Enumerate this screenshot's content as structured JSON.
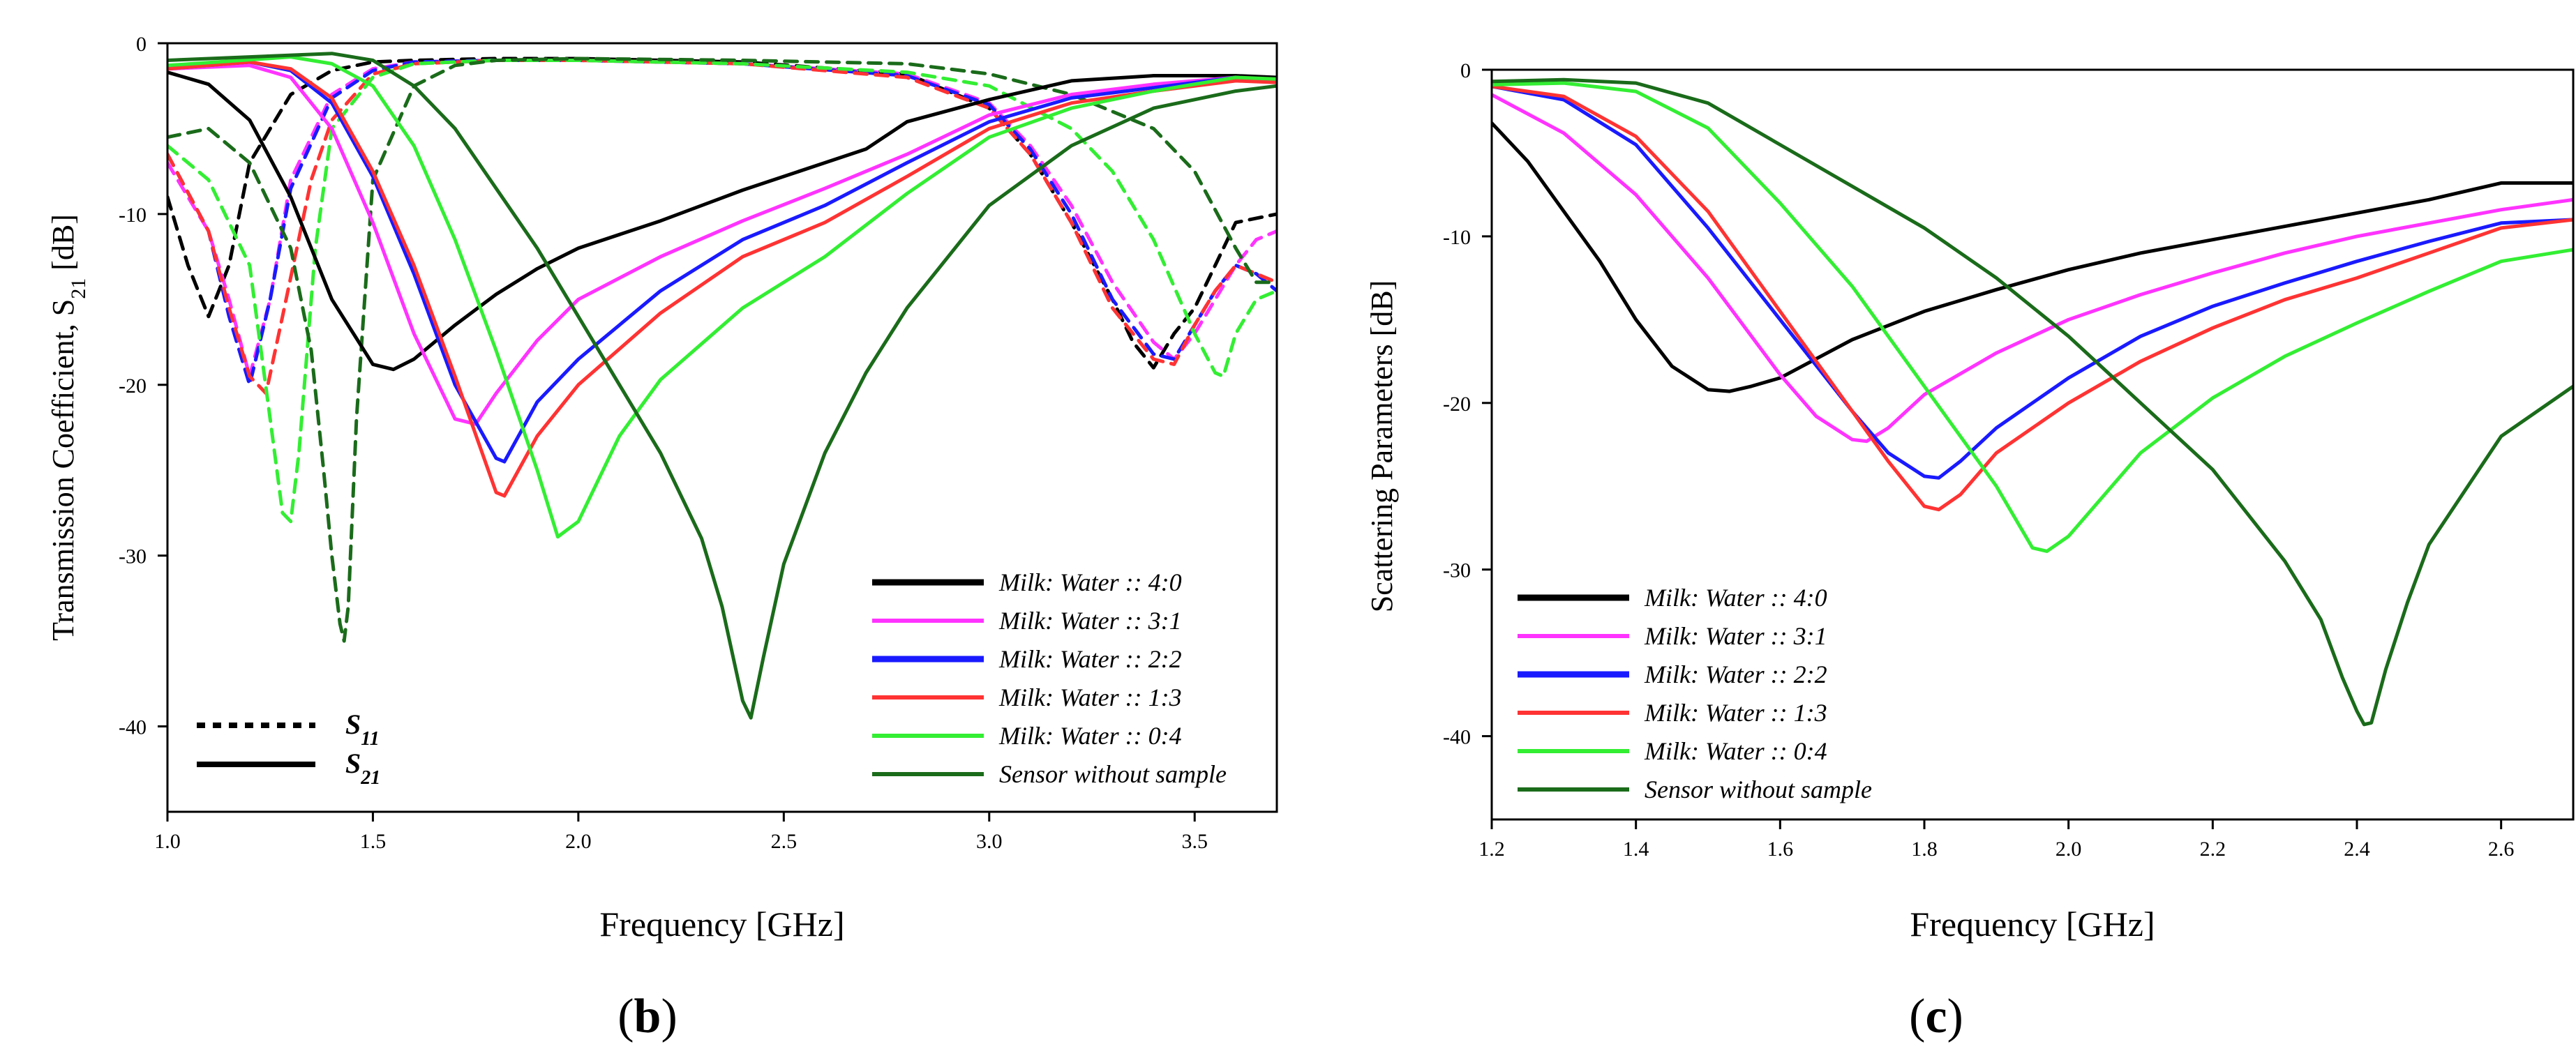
{
  "panels": [
    {
      "panel_label": "(b)",
      "letter": "b",
      "ylabel_main": "Transmission Coefficient, S",
      "ylabel_sub": "21",
      "ylabel_unit": " [dB]",
      "xlabel": "Frequency [GHz]",
      "line_style_legend": [
        {
          "label": "S",
          "sub": "11",
          "style": "dashed"
        },
        {
          "label": "S",
          "sub": "21",
          "style": "solid"
        }
      ]
    },
    {
      "panel_label": "(c)",
      "letter": "c",
      "ylabel_main": "Scattering Parameters [dB]",
      "ylabel_sub": "",
      "ylabel_unit": "",
      "xlabel": "Frequency [GHz]"
    }
  ],
  "colors": {
    "black": "#000000",
    "magenta": "#ff33ff",
    "blue": "#1a1aff",
    "red": "#ff3333",
    "green": "#33ee33",
    "darkgreen": "#1a6b1a"
  },
  "chart_data": [
    {
      "type": "line",
      "panel": "b",
      "title": "",
      "xlabel": "Frequency [GHz]",
      "ylabel": "Transmission Coefficient, S21 [dB]",
      "xlim": [
        1.0,
        3.7
      ],
      "ylim": [
        -45,
        0
      ],
      "xticks": [
        1.0,
        1.5,
        2.0,
        2.5,
        3.0,
        3.5
      ],
      "xtick_labels": [
        "1.0",
        "1.5",
        "2.0",
        "2.5",
        "3.0",
        "3.5"
      ],
      "yticks": [
        0,
        -10,
        -20,
        -30,
        -40
      ],
      "ytick_labels": [
        "0",
        "-10",
        "-20",
        "-30",
        "-40"
      ],
      "grid": false,
      "legend_position": "bottom-right",
      "series": [
        {
          "name": "Milk: Water :: 4:0",
          "color": "black",
          "style": "solid",
          "x": [
            1.0,
            1.1,
            1.2,
            1.3,
            1.4,
            1.5,
            1.55,
            1.6,
            1.7,
            1.8,
            1.9,
            2.0,
            2.2,
            2.4,
            2.6,
            2.7,
            2.8,
            3.0,
            3.2,
            3.4,
            3.6,
            3.7
          ],
          "y": [
            -1.7,
            -2.4,
            -4.5,
            -9,
            -15,
            -18.8,
            -19.1,
            -18.5,
            -16.5,
            -14.7,
            -13.2,
            -12.0,
            -10.4,
            -8.6,
            -7.0,
            -6.2,
            -4.6,
            -3.3,
            -2.2,
            -1.9,
            -1.9,
            -2.0
          ]
        },
        {
          "name": "Milk: Water :: 3:1",
          "color": "magenta",
          "style": "solid",
          "x": [
            1.0,
            1.2,
            1.3,
            1.4,
            1.5,
            1.6,
            1.7,
            1.75,
            1.8,
            1.9,
            2.0,
            2.2,
            2.4,
            2.6,
            2.8,
            3.0,
            3.2,
            3.4,
            3.6,
            3.7
          ],
          "y": [
            -1.5,
            -1.3,
            -2,
            -5,
            -10.5,
            -17,
            -22,
            -22.3,
            -20.5,
            -17.4,
            -15.0,
            -12.5,
            -10.4,
            -8.5,
            -6.5,
            -4.2,
            -3.0,
            -2.4,
            -2.0,
            -2.2
          ]
        },
        {
          "name": "Milk: Water :: 2:2",
          "color": "blue",
          "style": "solid",
          "x": [
            1.0,
            1.2,
            1.3,
            1.4,
            1.5,
            1.6,
            1.7,
            1.8,
            1.82,
            1.9,
            2.0,
            2.2,
            2.4,
            2.6,
            2.8,
            3.0,
            3.2,
            3.4,
            3.6,
            3.7
          ],
          "y": [
            -1.5,
            -1.1,
            -1.6,
            -3.5,
            -7.8,
            -13.5,
            -20,
            -24.3,
            -24.5,
            -21,
            -18.5,
            -14.5,
            -11.5,
            -9.5,
            -7.0,
            -4.6,
            -3.2,
            -2.6,
            -2.0,
            -2.2
          ]
        },
        {
          "name": "Milk: Water :: 1:3",
          "color": "red",
          "style": "solid",
          "x": [
            1.0,
            1.2,
            1.3,
            1.4,
            1.5,
            1.6,
            1.7,
            1.8,
            1.82,
            1.9,
            2.0,
            2.2,
            2.4,
            2.6,
            2.8,
            3.0,
            3.2,
            3.4,
            3.6,
            3.7
          ],
          "y": [
            -1.5,
            -1.1,
            -1.5,
            -3.2,
            -7.5,
            -13,
            -19.5,
            -26.3,
            -26.5,
            -23,
            -20.0,
            -15.8,
            -12.5,
            -10.5,
            -7.8,
            -5.0,
            -3.5,
            -2.8,
            -2.2,
            -2.3
          ]
        },
        {
          "name": "Milk: Water :: 0:4",
          "color": "green",
          "style": "solid",
          "x": [
            1.0,
            1.3,
            1.4,
            1.5,
            1.6,
            1.7,
            1.8,
            1.9,
            1.95,
            2.0,
            2.1,
            2.2,
            2.4,
            2.6,
            2.8,
            3.0,
            3.2,
            3.4,
            3.6,
            3.7
          ],
          "y": [
            -1.3,
            -0.8,
            -1.2,
            -2.5,
            -6,
            -11.5,
            -18,
            -25,
            -28.9,
            -28,
            -23,
            -19.7,
            -15.5,
            -12.5,
            -8.8,
            -5.5,
            -3.8,
            -2.8,
            -2.0,
            -2.1
          ]
        },
        {
          "name": "Sensor without sample",
          "color": "darkgreen",
          "style": "solid",
          "x": [
            1.0,
            1.2,
            1.4,
            1.5,
            1.6,
            1.7,
            1.8,
            1.9,
            2.0,
            2.1,
            2.2,
            2.3,
            2.35,
            2.4,
            2.42,
            2.45,
            2.5,
            2.6,
            2.7,
            2.8,
            3.0,
            3.2,
            3.4,
            3.6,
            3.7
          ],
          "y": [
            -1.0,
            -0.8,
            -0.6,
            -1.0,
            -2.5,
            -5,
            -8.5,
            -12,
            -16,
            -20,
            -24,
            -29,
            -33,
            -38.5,
            -39.5,
            -36,
            -30.5,
            -24,
            -19.3,
            -15.5,
            -9.5,
            -6,
            -3.8,
            -2.8,
            -2.5
          ]
        },
        {
          "name": "S11 4:0",
          "color": "black",
          "style": "dashed",
          "x": [
            1.0,
            1.05,
            1.1,
            1.15,
            1.2,
            1.3,
            1.4,
            1.5,
            1.6,
            1.8,
            2.0,
            2.4,
            2.8,
            3.0,
            3.1,
            3.2,
            3.3,
            3.35,
            3.4,
            3.45,
            3.5,
            3.55,
            3.6,
            3.7
          ],
          "y": [
            -9,
            -13,
            -16,
            -13,
            -7,
            -3,
            -1.6,
            -1.1,
            -1.0,
            -0.9,
            -0.9,
            -1.1,
            -1.8,
            -3.8,
            -6.5,
            -10.5,
            -15,
            -17.5,
            -19,
            -17,
            -15.5,
            -13,
            -10.5,
            -10
          ]
        },
        {
          "name": "S11 3:1",
          "color": "magenta",
          "style": "dashed",
          "x": [
            1.0,
            1.1,
            1.15,
            1.2,
            1.25,
            1.3,
            1.4,
            1.5,
            1.6,
            1.8,
            2.0,
            2.4,
            2.8,
            3.0,
            3.1,
            3.2,
            3.3,
            3.4,
            3.45,
            3.5,
            3.55,
            3.6,
            3.65,
            3.7
          ],
          "y": [
            -7,
            -11,
            -15,
            -19.5,
            -15,
            -8,
            -3,
            -1.5,
            -1.1,
            -1.0,
            -1.0,
            -1.2,
            -1.8,
            -3.5,
            -6,
            -9.5,
            -14,
            -17.5,
            -18.5,
            -17,
            -15,
            -13,
            -11.5,
            -11
          ]
        },
        {
          "name": "S11 2:2",
          "color": "blue",
          "style": "dashed",
          "x": [
            1.0,
            1.1,
            1.15,
            1.2,
            1.25,
            1.3,
            1.4,
            1.5,
            1.6,
            1.8,
            2.0,
            2.4,
            2.8,
            3.0,
            3.1,
            3.2,
            3.3,
            3.4,
            3.45,
            3.5,
            3.55,
            3.6,
            3.65,
            3.7
          ],
          "y": [
            -6.5,
            -11,
            -16,
            -20,
            -15,
            -8.5,
            -3.2,
            -1.6,
            -1.1,
            -1.0,
            -1.0,
            -1.2,
            -1.9,
            -3.6,
            -6.2,
            -10,
            -15,
            -18.2,
            -18.5,
            -16.5,
            -14.5,
            -13,
            -13.5,
            -14.5
          ]
        },
        {
          "name": "S11 1:3",
          "color": "red",
          "style": "dashed",
          "x": [
            1.0,
            1.1,
            1.15,
            1.2,
            1.24,
            1.28,
            1.35,
            1.4,
            1.5,
            1.6,
            1.8,
            2.0,
            2.4,
            2.8,
            3.0,
            3.1,
            3.2,
            3.3,
            3.4,
            3.45,
            3.5,
            3.55,
            3.6,
            3.65,
            3.7
          ],
          "y": [
            -6.5,
            -11,
            -15.5,
            -19.5,
            -20.5,
            -16,
            -8,
            -4.5,
            -1.8,
            -1.2,
            -1.0,
            -1.0,
            -1.2,
            -2,
            -3.8,
            -6.5,
            -10.5,
            -15.5,
            -18.5,
            -18.8,
            -16.5,
            -14.5,
            -13,
            -13.5,
            -14
          ]
        },
        {
          "name": "S11 0:4",
          "color": "green",
          "style": "dashed",
          "x": [
            1.0,
            1.1,
            1.2,
            1.25,
            1.28,
            1.3,
            1.32,
            1.36,
            1.4,
            1.5,
            1.6,
            1.8,
            2.0,
            2.4,
            2.8,
            3.0,
            3.2,
            3.3,
            3.4,
            3.5,
            3.55,
            3.57,
            3.6,
            3.65,
            3.7
          ],
          "y": [
            -6,
            -8,
            -13,
            -22,
            -27.5,
            -28,
            -24,
            -12,
            -5,
            -2,
            -1.2,
            -1.0,
            -1.0,
            -1.2,
            -1.7,
            -2.5,
            -5,
            -7.5,
            -11.5,
            -17,
            -19.3,
            -19.5,
            -17,
            -15,
            -14.5
          ]
        },
        {
          "name": "S11 without sample",
          "color": "darkgreen",
          "style": "dashed",
          "x": [
            1.0,
            1.1,
            1.2,
            1.3,
            1.35,
            1.38,
            1.4,
            1.42,
            1.43,
            1.44,
            1.46,
            1.5,
            1.6,
            1.7,
            1.8,
            2.0,
            2.4,
            2.8,
            3.0,
            3.2,
            3.4,
            3.5,
            3.6,
            3.65,
            3.7
          ],
          "y": [
            -5.5,
            -5,
            -7,
            -12,
            -18,
            -25,
            -30,
            -34,
            -35,
            -33,
            -22,
            -8,
            -2.5,
            -1.3,
            -1.0,
            -0.9,
            -1.0,
            -1.2,
            -1.8,
            -3,
            -5,
            -7.5,
            -12,
            -14,
            -14
          ]
        }
      ]
    },
    {
      "type": "line",
      "panel": "c",
      "title": "",
      "xlabel": "Frequency [GHz]",
      "ylabel": "Scattering Parameters [dB]",
      "xlim": [
        1.2,
        2.7
      ],
      "ylim": [
        -45,
        0
      ],
      "xticks": [
        1.2,
        1.4,
        1.6,
        1.8,
        2.0,
        2.2,
        2.4,
        2.6
      ],
      "xtick_labels": [
        "1.2",
        "1.4",
        "1.6",
        "1.8",
        "2.0",
        "2.2",
        "2.4",
        "2.6"
      ],
      "yticks": [
        0,
        -10,
        -20,
        -30,
        -40
      ],
      "ytick_labels": [
        "0",
        "-10",
        "-20",
        "-30",
        "-40"
      ],
      "grid": false,
      "legend_position": "bottom-left",
      "series": [
        {
          "name": "Milk: Water :: 4:0",
          "color": "black",
          "style": "solid",
          "x": [
            1.2,
            1.25,
            1.3,
            1.35,
            1.4,
            1.45,
            1.5,
            1.53,
            1.56,
            1.6,
            1.7,
            1.8,
            1.9,
            2.0,
            2.1,
            2.2,
            2.3,
            2.4,
            2.5,
            2.6,
            2.7
          ],
          "y": [
            -3.2,
            -5.5,
            -8.5,
            -11.5,
            -15,
            -17.8,
            -19.2,
            -19.3,
            -19,
            -18.5,
            -16.2,
            -14.5,
            -13.2,
            -12.0,
            -11.0,
            -10.2,
            -9.4,
            -8.6,
            -7.8,
            -6.8,
            -6.8
          ]
        },
        {
          "name": "Milk: Water :: 3:1",
          "color": "magenta",
          "style": "solid",
          "x": [
            1.2,
            1.3,
            1.4,
            1.5,
            1.6,
            1.65,
            1.7,
            1.72,
            1.75,
            1.8,
            1.9,
            2.0,
            2.1,
            2.2,
            2.3,
            2.4,
            2.5,
            2.6,
            2.7
          ],
          "y": [
            -1.5,
            -3.8,
            -7.5,
            -12.5,
            -18.3,
            -20.8,
            -22.2,
            -22.3,
            -21.5,
            -19.5,
            -17.0,
            -15.0,
            -13.5,
            -12.2,
            -11.0,
            -10.0,
            -9.2,
            -8.4,
            -7.8
          ]
        },
        {
          "name": "Milk: Water :: 2:2",
          "color": "blue",
          "style": "solid",
          "x": [
            1.2,
            1.3,
            1.4,
            1.5,
            1.6,
            1.7,
            1.75,
            1.8,
            1.82,
            1.85,
            1.9,
            2.0,
            2.1,
            2.2,
            2.3,
            2.4,
            2.5,
            2.6,
            2.7
          ],
          "y": [
            -1.0,
            -1.8,
            -4.5,
            -9.5,
            -15,
            -20.5,
            -23,
            -24.4,
            -24.5,
            -23.5,
            -21.5,
            -18.5,
            -16.0,
            -14.2,
            -12.8,
            -11.5,
            -10.3,
            -9.2,
            -9.0
          ]
        },
        {
          "name": "Milk: Water :: 1:3",
          "color": "red",
          "style": "solid",
          "x": [
            1.2,
            1.3,
            1.4,
            1.5,
            1.6,
            1.7,
            1.75,
            1.8,
            1.82,
            1.85,
            1.9,
            2.0,
            2.1,
            2.2,
            2.3,
            2.4,
            2.5,
            2.6,
            2.7
          ],
          "y": [
            -1.0,
            -1.6,
            -4.0,
            -8.5,
            -14.5,
            -20.5,
            -23.5,
            -26.2,
            -26.4,
            -25.5,
            -23,
            -20,
            -17.5,
            -15.5,
            -13.8,
            -12.5,
            -11.0,
            -9.5,
            -9.0
          ]
        },
        {
          "name": "Milk: Water :: 0:4",
          "color": "green",
          "style": "solid",
          "x": [
            1.2,
            1.3,
            1.4,
            1.5,
            1.6,
            1.7,
            1.8,
            1.9,
            1.95,
            1.97,
            2.0,
            2.05,
            2.1,
            2.2,
            2.3,
            2.4,
            2.5,
            2.6,
            2.7
          ],
          "y": [
            -0.9,
            -0.8,
            -1.3,
            -3.5,
            -8,
            -13,
            -19,
            -25,
            -28.7,
            -28.9,
            -28,
            -25.5,
            -23,
            -19.7,
            -17.2,
            -15.2,
            -13.3,
            -11.5,
            -10.8
          ]
        },
        {
          "name": "Sensor without sample",
          "color": "darkgreen",
          "style": "solid",
          "x": [
            1.2,
            1.3,
            1.4,
            1.5,
            1.6,
            1.7,
            1.8,
            1.9,
            2.0,
            2.1,
            2.2,
            2.3,
            2.35,
            2.38,
            2.4,
            2.41,
            2.42,
            2.44,
            2.47,
            2.5,
            2.6,
            2.7
          ],
          "y": [
            -0.7,
            -0.6,
            -0.8,
            -2,
            -4.5,
            -7,
            -9.5,
            -12.5,
            -16,
            -20,
            -24,
            -29.5,
            -33,
            -36.5,
            -38.5,
            -39.3,
            -39.2,
            -36,
            -32,
            -28.5,
            -22,
            -19
          ]
        }
      ]
    }
  ]
}
